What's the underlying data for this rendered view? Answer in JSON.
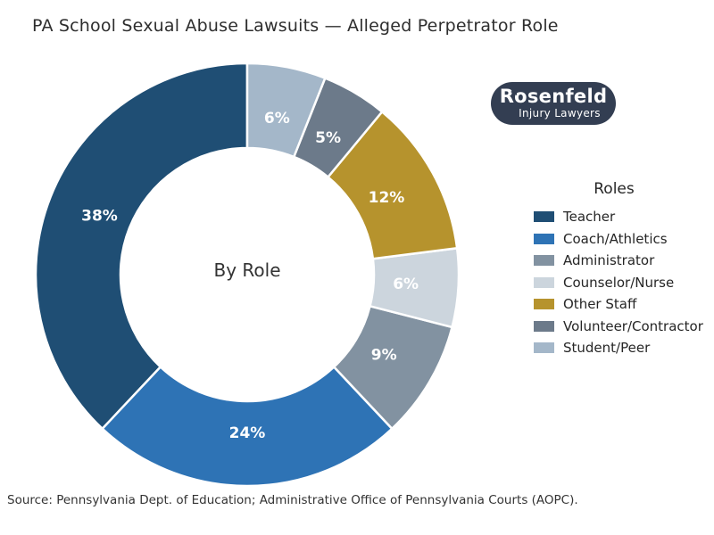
{
  "header": {
    "title": "PA School Sexual Abuse Lawsuits — Alleged Perpetrator Role"
  },
  "logo": {
    "name": "Rosenfeld Injury Lawyers",
    "line1": "Rosenfeld",
    "line2": "Injury Lawyers",
    "bg_color": "#333e52",
    "text_color": "#ffffff"
  },
  "chart_data": {
    "type": "pie",
    "variant": "donut",
    "title": "PA School Sexual Abuse Lawsuits — Alleged Perpetrator Role",
    "center_label": "By Role",
    "legend_title": "Roles",
    "legend_position": "right",
    "start_angle": 90,
    "direction": "counterclockwise",
    "categories": [
      "Teacher",
      "Coach/Athletics",
      "Administrator",
      "Counselor/Nurse",
      "Other Staff",
      "Volunteer/Contractor",
      "Student/Peer"
    ],
    "values": [
      38,
      24,
      9,
      6,
      12,
      5,
      6
    ],
    "unit": "%",
    "slice_labels": [
      "38%",
      "24%",
      "9%",
      "6%",
      "12%",
      "5%",
      "6%"
    ],
    "colors": [
      "#1f4e74",
      "#2e73b5",
      "#8292a1",
      "#ccd5dd",
      "#b6932d",
      "#6c7a8a",
      "#a4b7c9"
    ],
    "slice_label_color": "#ffffff",
    "separator_color": "#ffffff"
  },
  "footer": {
    "source": "Source: Pennsylvania Dept. of Education; Administrative Office of Pennsylvania Courts (AOPC)."
  }
}
